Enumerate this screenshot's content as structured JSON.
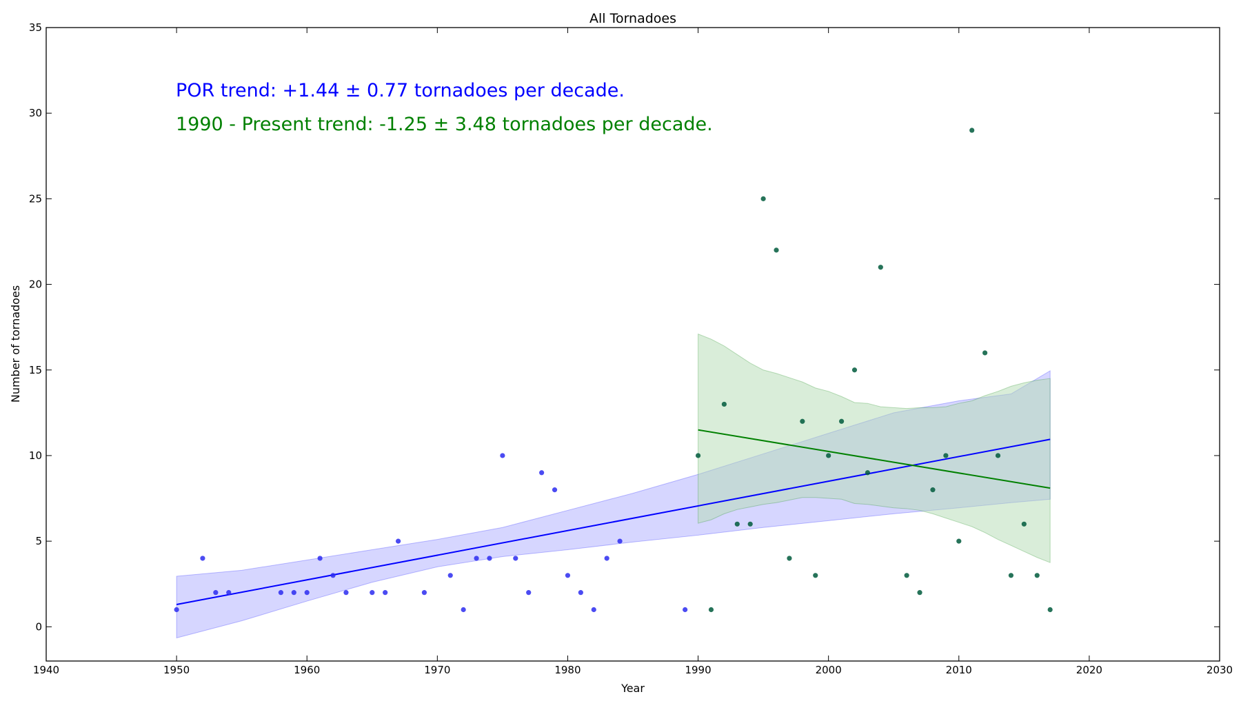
{
  "chart_data": {
    "type": "scatter",
    "title": "All Tornadoes",
    "xlabel": "Year",
    "ylabel": "Number of tornadoes",
    "xlim": [
      1940,
      2030
    ],
    "ylim": [
      -2,
      35
    ],
    "xticks": [
      1940,
      1950,
      1960,
      1970,
      1980,
      1990,
      2000,
      2010,
      2020,
      2030
    ],
    "yticks": [
      0,
      5,
      10,
      15,
      20,
      25,
      30,
      35
    ],
    "grid": false,
    "colors": {
      "por": "#0000ff",
      "por_band": "#c8c8ff",
      "recent": "#008000",
      "recent_band": "#b4dcb4",
      "overlap_points": "#005a3c"
    },
    "annotations": [
      {
        "text": "POR trend: +1.44 ± 0.77 tornadoes per decade.",
        "color": "#0000ff"
      },
      {
        "text": "1990 - Present trend: -1.25 ± 3.48 tornadoes per decade.",
        "color": "#008000"
      }
    ],
    "series": [
      {
        "name": "POR",
        "kind": "points",
        "points": [
          [
            1950,
            1
          ],
          [
            1952,
            4
          ],
          [
            1953,
            2
          ],
          [
            1954,
            2
          ],
          [
            1958,
            2
          ],
          [
            1959,
            2
          ],
          [
            1960,
            2
          ],
          [
            1961,
            4
          ],
          [
            1962,
            3
          ],
          [
            1963,
            2
          ],
          [
            1965,
            2
          ],
          [
            1966,
            2
          ],
          [
            1967,
            5
          ],
          [
            1969,
            2
          ],
          [
            1971,
            3
          ],
          [
            1972,
            1
          ],
          [
            1973,
            4
          ],
          [
            1974,
            4
          ],
          [
            1975,
            10
          ],
          [
            1976,
            4
          ],
          [
            1977,
            2
          ],
          [
            1978,
            9
          ],
          [
            1979,
            8
          ],
          [
            1980,
            3
          ],
          [
            1981,
            2
          ],
          [
            1982,
            1
          ],
          [
            1983,
            4
          ],
          [
            1984,
            5
          ],
          [
            1989,
            1
          ]
        ]
      },
      {
        "name": "1990 - Present",
        "kind": "points",
        "points": [
          [
            1990,
            10
          ],
          [
            1991,
            1
          ],
          [
            1992,
            13
          ],
          [
            1993,
            6
          ],
          [
            1994,
            6
          ],
          [
            1995,
            25
          ],
          [
            1996,
            22
          ],
          [
            1997,
            4
          ],
          [
            1998,
            12
          ],
          [
            1999,
            3
          ],
          [
            2000,
            10
          ],
          [
            2001,
            12
          ],
          [
            2002,
            15
          ],
          [
            2003,
            9
          ],
          [
            2004,
            21
          ],
          [
            2006,
            3
          ],
          [
            2007,
            2
          ],
          [
            2008,
            8
          ],
          [
            2009,
            10
          ],
          [
            2010,
            5
          ],
          [
            2011,
            29
          ],
          [
            2012,
            16
          ],
          [
            2013,
            10
          ],
          [
            2014,
            3
          ],
          [
            2015,
            6
          ],
          [
            2016,
            3
          ],
          [
            2017,
            1
          ]
        ]
      }
    ],
    "trend_lines": [
      {
        "name": "POR",
        "x": [
          1950,
          2017
        ],
        "y": [
          1.3,
          10.95
        ]
      },
      {
        "name": "1990 - Present",
        "x": [
          1990,
          2017
        ],
        "y": [
          11.5,
          8.1
        ]
      }
    ],
    "confidence_bands": [
      {
        "name": "POR",
        "x": [
          1950,
          1955,
          1960,
          1965,
          1970,
          1975,
          1980,
          1985,
          1990,
          1995,
          2000,
          2005,
          2010,
          2014,
          2017
        ],
        "upper": [
          2.95,
          3.3,
          3.9,
          4.5,
          5.1,
          5.8,
          6.8,
          7.8,
          8.9,
          10.1,
          11.3,
          12.5,
          13.2,
          13.6,
          14.95
        ],
        "lower": [
          -0.65,
          0.35,
          1.5,
          2.6,
          3.5,
          4.1,
          4.5,
          4.95,
          5.35,
          5.8,
          6.2,
          6.6,
          6.95,
          7.25,
          7.45
        ]
      },
      {
        "name": "1990 - Present",
        "x": [
          1990,
          1991,
          1992,
          1993,
          1994,
          1995,
          1996,
          1997,
          1998,
          1999,
          2000,
          2001,
          2002,
          2003,
          2004,
          2005,
          2006,
          2007,
          2008,
          2009,
          2010,
          2011,
          2012,
          2013,
          2014,
          2015,
          2016,
          2017
        ],
        "upper": [
          17.1,
          16.8,
          16.4,
          15.9,
          15.4,
          15.0,
          14.8,
          14.55,
          14.3,
          13.95,
          13.75,
          13.45,
          13.1,
          13.05,
          12.85,
          12.8,
          12.75,
          12.8,
          12.8,
          12.85,
          13.05,
          13.2,
          13.5,
          13.75,
          14.05,
          14.25,
          14.4,
          14.5
        ],
        "lower": [
          6.05,
          6.25,
          6.6,
          6.85,
          7.0,
          7.15,
          7.25,
          7.4,
          7.55,
          7.55,
          7.5,
          7.45,
          7.2,
          7.15,
          7.05,
          6.95,
          6.9,
          6.8,
          6.6,
          6.35,
          6.1,
          5.85,
          5.5,
          5.1,
          4.75,
          4.4,
          4.05,
          3.75
        ]
      }
    ]
  }
}
